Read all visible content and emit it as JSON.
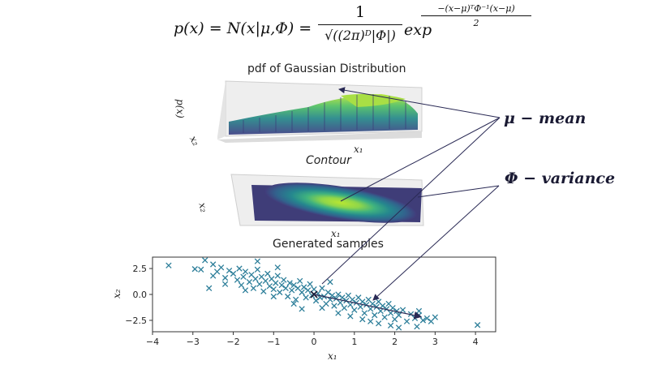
{
  "formula": {
    "lhs": "p(x) = N(x|μ,Φ) =",
    "frac_num": "1",
    "frac_den": "√((2π)ᴰ|Φ|)",
    "exp_text": "exp",
    "exp_num": "−(x−μ)ᵀΦ⁻¹(x−μ)",
    "exp_den": "2"
  },
  "titles": {
    "pdf": "pdf of Gaussian Distribution",
    "contour": "Contour",
    "samples": "Generated samples"
  },
  "annotations": {
    "mean": "μ − mean",
    "variance": "Φ − variance"
  },
  "pdf_panel": {
    "zlabel": "p(x)",
    "ylabel": "x₂",
    "xlabel": "x₁"
  },
  "contour_panel": {
    "ylabel": "x₂",
    "xlabel": "x₁"
  },
  "chart_data": {
    "type": "scatter",
    "title": "Generated samples",
    "xlabel": "x₁",
    "ylabel": "x₂",
    "xlim": [
      -4,
      4.5
    ],
    "ylim": [
      -3.6,
      3.6
    ],
    "x_ticks": [
      -4,
      -3,
      -2,
      -1,
      0,
      1,
      2,
      3,
      4
    ],
    "y_ticks": [
      -2.5,
      0.0,
      2.5
    ],
    "y_tick_labels": [
      "−2.5",
      "0.0",
      "2.5"
    ],
    "x_tick_labels": [
      "−4",
      "−3",
      "−2",
      "−1",
      "0",
      "1",
      "2",
      "3",
      "4"
    ],
    "marker": "x",
    "color": "#2e7f9a",
    "mean": [
      0,
      0
    ],
    "variance_vector_end": [
      2.65,
      -2.15
    ],
    "points": [
      [
        -3.6,
        2.8
      ],
      [
        -2.95,
        2.45
      ],
      [
        -2.8,
        2.4
      ],
      [
        -2.7,
        3.3
      ],
      [
        -2.5,
        2.9
      ],
      [
        -2.4,
        2.2
      ],
      [
        -2.3,
        2.6
      ],
      [
        -2.2,
        1.6
      ],
      [
        -2.1,
        2.3
      ],
      [
        -2.6,
        0.6
      ],
      [
        -2.5,
        1.8
      ],
      [
        -2.0,
        2.0
      ],
      [
        -1.9,
        1.4
      ],
      [
        -1.85,
        2.5
      ],
      [
        -1.8,
        0.9
      ],
      [
        -1.75,
        1.7
      ],
      [
        -1.7,
        2.2
      ],
      [
        -1.6,
        1.2
      ],
      [
        -1.55,
        1.9
      ],
      [
        -1.5,
        0.6
      ],
      [
        -1.45,
        1.5
      ],
      [
        -1.4,
        2.4
      ],
      [
        -1.35,
        1.0
      ],
      [
        -1.3,
        1.7
      ],
      [
        -1.25,
        0.3
      ],
      [
        -1.2,
        1.3
      ],
      [
        -1.15,
        2.0
      ],
      [
        -1.1,
        0.8
      ],
      [
        -1.05,
        1.5
      ],
      [
        -1.0,
        0.5
      ],
      [
        -0.95,
        1.1
      ],
      [
        -0.9,
        1.8
      ],
      [
        -0.85,
        0.2
      ],
      [
        -0.8,
        0.9
      ],
      [
        -0.75,
        1.4
      ],
      [
        -0.7,
        0.6
      ],
      [
        -0.65,
        -0.2
      ],
      [
        -0.6,
        1.1
      ],
      [
        -0.55,
        0.4
      ],
      [
        -0.5,
        0.9
      ],
      [
        -0.45,
        -0.5
      ],
      [
        -0.4,
        0.6
      ],
      [
        -0.35,
        1.3
      ],
      [
        -0.3,
        0.2
      ],
      [
        -0.25,
        0.7
      ],
      [
        -0.2,
        -0.3
      ],
      [
        -0.15,
        0.4
      ],
      [
        -0.1,
        1.0
      ],
      [
        -0.05,
        -0.1
      ],
      [
        0.0,
        0.5
      ],
      [
        0.05,
        -0.6
      ],
      [
        0.1,
        0.1
      ],
      [
        0.15,
        -0.3
      ],
      [
        0.2,
        0.6
      ],
      [
        0.25,
        -0.2
      ],
      [
        0.3,
        -0.9
      ],
      [
        0.35,
        0.2
      ],
      [
        0.4,
        -0.5
      ],
      [
        0.45,
        -0.1
      ],
      [
        0.5,
        -1.1
      ],
      [
        0.55,
        -0.4
      ],
      [
        0.6,
        0.0
      ],
      [
        0.65,
        -0.8
      ],
      [
        0.7,
        -0.3
      ],
      [
        0.75,
        -1.3
      ],
      [
        0.8,
        -0.6
      ],
      [
        0.85,
        -0.1
      ],
      [
        0.9,
        -1.0
      ],
      [
        0.95,
        -0.5
      ],
      [
        1.0,
        -1.5
      ],
      [
        1.05,
        -0.8
      ],
      [
        1.1,
        -0.3
      ],
      [
        1.15,
        -1.2
      ],
      [
        1.2,
        -0.7
      ],
      [
        1.25,
        -1.8
      ],
      [
        1.3,
        -1.0
      ],
      [
        1.35,
        -0.5
      ],
      [
        1.4,
        -1.4
      ],
      [
        1.45,
        -0.9
      ],
      [
        1.5,
        -2.0
      ],
      [
        1.55,
        -1.2
      ],
      [
        1.6,
        -0.7
      ],
      [
        1.65,
        -1.6
      ],
      [
        1.7,
        -1.1
      ],
      [
        1.75,
        -2.2
      ],
      [
        1.8,
        -1.4
      ],
      [
        1.85,
        -0.9
      ],
      [
        1.9,
        -1.8
      ],
      [
        1.95,
        -1.3
      ],
      [
        2.0,
        -2.4
      ],
      [
        2.05,
        -1.6
      ],
      [
        2.1,
        -2.0
      ],
      [
        2.2,
        -1.5
      ],
      [
        2.3,
        -2.6
      ],
      [
        2.4,
        -1.9
      ],
      [
        2.5,
        -2.3
      ],
      [
        2.55,
        -3.1
      ],
      [
        2.6,
        -2.0
      ],
      [
        2.7,
        -2.5
      ],
      [
        2.8,
        -2.3
      ],
      [
        2.9,
        -2.6
      ],
      [
        3.0,
        -2.2
      ],
      [
        4.05,
        -2.95
      ],
      [
        1.4,
        -2.6
      ],
      [
        0.9,
        -2.1
      ],
      [
        -0.5,
        -0.9
      ],
      [
        -1.0,
        -0.2
      ],
      [
        -1.7,
        0.4
      ],
      [
        -2.2,
        1.0
      ],
      [
        0.2,
        -1.3
      ],
      [
        1.9,
        -3.0
      ],
      [
        1.2,
        -2.4
      ],
      [
        0.6,
        -1.8
      ],
      [
        -0.3,
        -1.4
      ],
      [
        2.6,
        -1.6
      ],
      [
        1.6,
        -2.8
      ],
      [
        2.1,
        -3.2
      ],
      [
        0.4,
        1.2
      ],
      [
        -0.9,
        2.6
      ],
      [
        -1.4,
        3.2
      ]
    ]
  }
}
